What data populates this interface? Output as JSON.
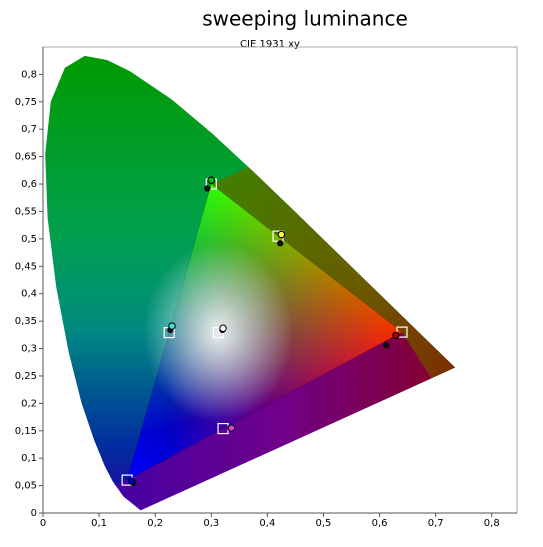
{
  "chart_data": {
    "type": "scatter",
    "title": "sweeping luminance",
    "subtitle": "CIE 1931 xy",
    "xlim": [
      0,
      0.845
    ],
    "ylim": [
      0,
      0.85
    ],
    "xticks": [
      0,
      {
        "value": 0.1,
        "label": "0,1"
      },
      {
        "value": 0.2,
        "label": "0,2"
      },
      {
        "value": 0.3,
        "label": "0,3"
      },
      {
        "value": 0.4,
        "label": "0,4"
      },
      {
        "value": 0.5,
        "label": "0,5"
      },
      {
        "value": 0.6,
        "label": "0,6"
      },
      {
        "value": 0.7,
        "label": "0,7"
      },
      {
        "value": 0.8,
        "label": "0,8"
      }
    ],
    "yticks": [
      0,
      {
        "value": 0.05,
        "label": "0,05"
      },
      {
        "value": 0.1,
        "label": "0,1"
      },
      {
        "value": 0.15,
        "label": "0,15"
      },
      {
        "value": 0.2,
        "label": "0,2"
      },
      {
        "value": 0.25,
        "label": "0,25"
      },
      {
        "value": 0.3,
        "label": "0,3"
      },
      {
        "value": 0.35,
        "label": "0,35"
      },
      {
        "value": 0.4,
        "label": "0,4"
      },
      {
        "value": 0.45,
        "label": "0,45"
      },
      {
        "value": 0.5,
        "label": "0,5"
      },
      {
        "value": 0.55,
        "label": "0,55"
      },
      {
        "value": 0.6,
        "label": "0,6"
      },
      {
        "value": 0.65,
        "label": "0,65"
      },
      {
        "value": 0.7,
        "label": "0,7"
      },
      {
        "value": 0.75,
        "label": "0,75"
      },
      {
        "value": 0.8,
        "label": "0,8"
      }
    ],
    "locus": {
      "x": [
        0.1741,
        0.144,
        0.1241,
        0.1096,
        0.0913,
        0.0687,
        0.0454,
        0.0235,
        0.0082,
        0.0039,
        0.0139,
        0.0389,
        0.0743,
        0.1142,
        0.1547,
        0.2296,
        0.3016,
        0.3731,
        0.4441,
        0.5125,
        0.5752,
        0.627,
        0.6915,
        0.7347
      ],
      "y": [
        0.005,
        0.0297,
        0.0578,
        0.0868,
        0.1327,
        0.2007,
        0.295,
        0.4127,
        0.5384,
        0.6548,
        0.7502,
        0.812,
        0.8338,
        0.8262,
        0.8059,
        0.7543,
        0.6923,
        0.6245,
        0.5547,
        0.4866,
        0.4242,
        0.3725,
        0.3083,
        0.2653
      ]
    },
    "series": [
      {
        "marker": "square",
        "color": "#ffffff",
        "x": [
          0.64,
          0.3,
          0.15,
          0.3127,
          0.419,
          0.225,
          0.321
        ],
        "y": [
          0.33,
          0.6,
          0.06,
          0.329,
          0.505,
          0.329,
          0.154
        ]
      },
      {
        "marker": "circle",
        "color": "#111111",
        "x": [
          0.612,
          0.293,
          0.161,
          0.32,
          0.423,
          0.227,
          0.334
        ],
        "y": [
          0.306,
          0.592,
          0.055,
          0.334,
          0.492,
          0.334,
          0.155
        ]
      },
      {
        "marker": "circle-outline",
        "colors": [
          "#a00000",
          "#00c000",
          "#0000c0",
          "#ffffff",
          "#ffff40",
          "#40e0e0",
          "#e040e0"
        ],
        "x": [
          0.629,
          0.3,
          0.158,
          0.321,
          0.425,
          0.23,
          0.336
        ],
        "y": [
          0.324,
          0.607,
          0.058,
          0.337,
          0.508,
          0.341,
          0.155
        ]
      }
    ]
  }
}
